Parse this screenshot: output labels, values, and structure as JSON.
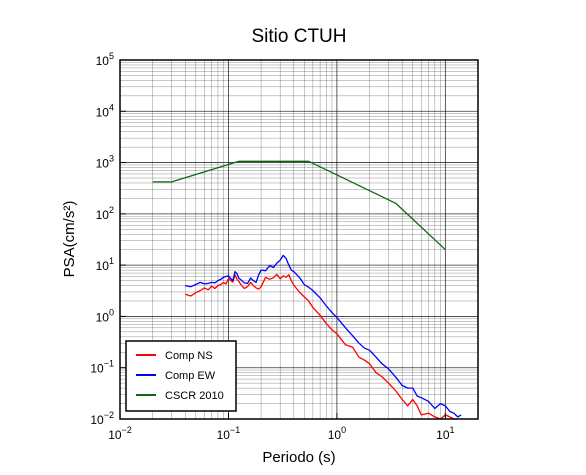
{
  "chart_data": {
    "type": "line",
    "title": "Sitio CTUH",
    "xlabel": "Periodo (s)",
    "ylabel": "PSA(cm/s²)",
    "x_scale": "log",
    "y_scale": "log",
    "xlim": [
      0.01,
      20
    ],
    "ylim": [
      0.01,
      100000
    ],
    "x_ticks": [
      {
        "value": 0.01,
        "base": "10",
        "exp": "−2"
      },
      {
        "value": 0.1,
        "base": "10",
        "exp": "−1"
      },
      {
        "value": 1,
        "base": "10",
        "exp": "0"
      },
      {
        "value": 10,
        "base": "10",
        "exp": "1"
      }
    ],
    "y_ticks": [
      {
        "value": 0.01,
        "base": "10",
        "exp": "−2"
      },
      {
        "value": 0.1,
        "base": "10",
        "exp": "−1"
      },
      {
        "value": 1,
        "base": "10",
        "exp": "0"
      },
      {
        "value": 10,
        "base": "10",
        "exp": "1"
      },
      {
        "value": 100,
        "base": "10",
        "exp": "2"
      },
      {
        "value": 1000,
        "base": "10",
        "exp": "3"
      },
      {
        "value": 10000,
        "base": "10",
        "exp": "4"
      },
      {
        "value": 100000,
        "base": "10",
        "exp": "5"
      }
    ],
    "grid": true,
    "legend_position": "bottom-left",
    "series": [
      {
        "name": "Comp NS",
        "color": "#ff0000",
        "x": [
          0.04,
          0.045,
          0.05,
          0.055,
          0.06,
          0.065,
          0.07,
          0.075,
          0.08,
          0.085,
          0.09,
          0.095,
          0.1,
          0.105,
          0.11,
          0.115,
          0.12,
          0.125,
          0.13,
          0.14,
          0.15,
          0.16,
          0.17,
          0.18,
          0.19,
          0.2,
          0.22,
          0.24,
          0.26,
          0.28,
          0.3,
          0.32,
          0.34,
          0.36,
          0.38,
          0.4,
          0.45,
          0.5,
          0.55,
          0.6,
          0.7,
          0.8,
          0.9,
          1.0,
          1.2,
          1.4,
          1.6,
          1.8,
          2.0,
          2.3,
          2.6,
          3.0,
          3.5,
          4.0,
          4.5,
          5.0,
          5.5,
          6.0,
          7.0,
          8.0,
          9.0,
          10.0,
          11.0,
          12.0,
          13.0
        ],
        "y": [
          2.7,
          2.5,
          2.9,
          3.2,
          3.6,
          3.3,
          3.9,
          3.5,
          4.0,
          4.2,
          4.6,
          4.3,
          5.5,
          5.0,
          4.7,
          6.5,
          5.3,
          4.8,
          4.2,
          3.5,
          3.8,
          4.6,
          4.0,
          3.6,
          3.4,
          3.8,
          5.8,
          5.3,
          5.7,
          6.6,
          5.4,
          6.2,
          5.8,
          6.5,
          5.0,
          4.1,
          3.0,
          2.4,
          2.0,
          1.5,
          1.05,
          0.72,
          0.55,
          0.46,
          0.28,
          0.25,
          0.16,
          0.14,
          0.12,
          0.08,
          0.067,
          0.05,
          0.035,
          0.024,
          0.018,
          0.024,
          0.018,
          0.012,
          0.013,
          0.011,
          0.01,
          0.012,
          0.011,
          0.01,
          0.01
        ]
      },
      {
        "name": "Comp EW",
        "color": "#0000ff",
        "x": [
          0.04,
          0.045,
          0.05,
          0.055,
          0.06,
          0.065,
          0.07,
          0.075,
          0.08,
          0.085,
          0.09,
          0.095,
          0.1,
          0.105,
          0.11,
          0.115,
          0.12,
          0.125,
          0.13,
          0.14,
          0.15,
          0.16,
          0.17,
          0.18,
          0.19,
          0.2,
          0.22,
          0.24,
          0.26,
          0.28,
          0.3,
          0.32,
          0.34,
          0.36,
          0.38,
          0.4,
          0.45,
          0.5,
          0.55,
          0.6,
          0.7,
          0.8,
          0.9,
          1.0,
          1.2,
          1.4,
          1.6,
          1.8,
          2.0,
          2.3,
          2.6,
          3.0,
          3.5,
          4.0,
          4.5,
          5.0,
          5.5,
          6.0,
          7.0,
          8.0,
          9.0,
          10.0,
          11.0,
          12.0,
          13.0,
          14.0
        ],
        "y": [
          4.0,
          3.8,
          4.2,
          4.6,
          4.3,
          4.4,
          4.6,
          4.5,
          5.0,
          5.3,
          5.8,
          6.0,
          6.2,
          5.5,
          5.0,
          7.5,
          6.8,
          5.5,
          5.2,
          4.5,
          4.4,
          5.6,
          5.0,
          4.6,
          6.5,
          8.0,
          7.8,
          9.8,
          9.0,
          11.0,
          12.5,
          15.5,
          13.5,
          10.0,
          8.0,
          7.5,
          5.8,
          4.2,
          3.7,
          3.2,
          2.3,
          1.6,
          1.2,
          0.95,
          0.6,
          0.42,
          0.3,
          0.24,
          0.22,
          0.16,
          0.12,
          0.095,
          0.065,
          0.045,
          0.04,
          0.04,
          0.028,
          0.026,
          0.022,
          0.016,
          0.02,
          0.018,
          0.014,
          0.013,
          0.011,
          0.012
        ]
      },
      {
        "name": "CSCR 2010",
        "color": "#116611",
        "x": [
          0.02,
          0.03,
          0.125,
          0.55,
          3.5,
          10.0
        ],
        "y": [
          420,
          420,
          1060,
          1060,
          160,
          20
        ]
      }
    ]
  }
}
